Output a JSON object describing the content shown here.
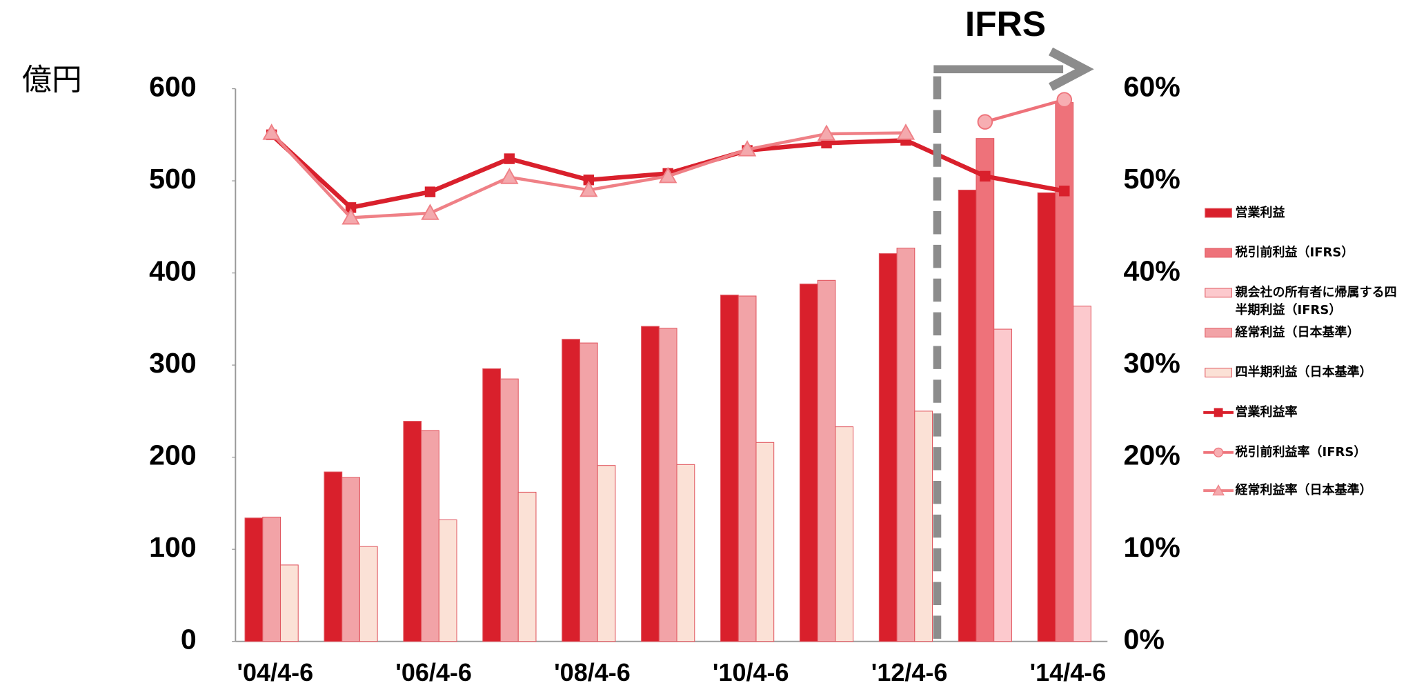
{
  "chart_data": {
    "type": "bar",
    "y_label": "億円",
    "annotation": "IFRS",
    "categories": [
      "'04/4-6",
      null,
      "'06/4-6",
      null,
      "'08/4-6",
      null,
      "'10/4-6",
      null,
      "'12/4-6",
      null,
      "'14/4-6"
    ],
    "ylim": [
      0,
      600
    ],
    "yticks": [
      0,
      100,
      200,
      300,
      400,
      500,
      600
    ],
    "y2lim": [
      0,
      60
    ],
    "y2ticks": [
      {
        "value": 0,
        "label": "0%"
      },
      {
        "value": 10,
        "label": "10%"
      },
      {
        "value": 20,
        "label": "20%"
      },
      {
        "value": 30,
        "label": "30%"
      },
      {
        "value": 40,
        "label": "40%"
      },
      {
        "value": 50,
        "label": "50%"
      },
      {
        "value": 60,
        "label": "60%"
      }
    ],
    "legend": "right",
    "series": [
      {
        "name": "営業利益",
        "type": "bar",
        "color": "#d9202c",
        "values": [
          134,
          184,
          239,
          296,
          328,
          342,
          376,
          388,
          421,
          490,
          487
        ]
      },
      {
        "name": "税引前利益（IFRS）",
        "type": "bar",
        "color": "#ee727a",
        "values": [
          null,
          null,
          null,
          null,
          null,
          null,
          null,
          null,
          null,
          546,
          585
        ]
      },
      {
        "name": "親会社の所有者に帰属する四半期利益（IFRS）",
        "type": "bar",
        "color": "#fcc9cd",
        "values": [
          null,
          null,
          null,
          null,
          null,
          null,
          null,
          null,
          null,
          339,
          364
        ]
      },
      {
        "name": "経常利益（日本基準）",
        "type": "bar",
        "color": "#f2a3a7",
        "values": [
          135,
          178,
          229,
          285,
          324,
          340,
          375,
          392,
          427,
          null,
          null
        ]
      },
      {
        "name": "四半期利益（日本基準）",
        "type": "bar",
        "color": "#fbe1d6",
        "values": [
          83,
          103,
          132,
          162,
          191,
          192,
          216,
          233,
          250,
          null,
          null
        ]
      },
      {
        "name": "営業利益率",
        "type": "line",
        "axis": "y2",
        "marker": "square",
        "color": "#d9202c",
        "values": [
          55.0,
          47.1,
          48.8,
          52.4,
          50.1,
          50.8,
          53.3,
          54.1,
          54.4,
          50.5,
          48.9
        ]
      },
      {
        "name": "税引前利益率（IFRS）",
        "type": "line",
        "axis": "y2",
        "marker": "circle",
        "color": "#ee727a",
        "values": [
          null,
          null,
          null,
          null,
          null,
          null,
          null,
          null,
          null,
          56.4,
          58.8
        ]
      },
      {
        "name": "経常利益率（日本基準）",
        "type": "line",
        "axis": "y2",
        "marker": "triangle",
        "color": "#ef8086",
        "values": [
          55.2,
          46.0,
          46.5,
          50.4,
          49.0,
          50.5,
          53.4,
          55.1,
          55.2,
          null,
          null
        ]
      }
    ]
  }
}
